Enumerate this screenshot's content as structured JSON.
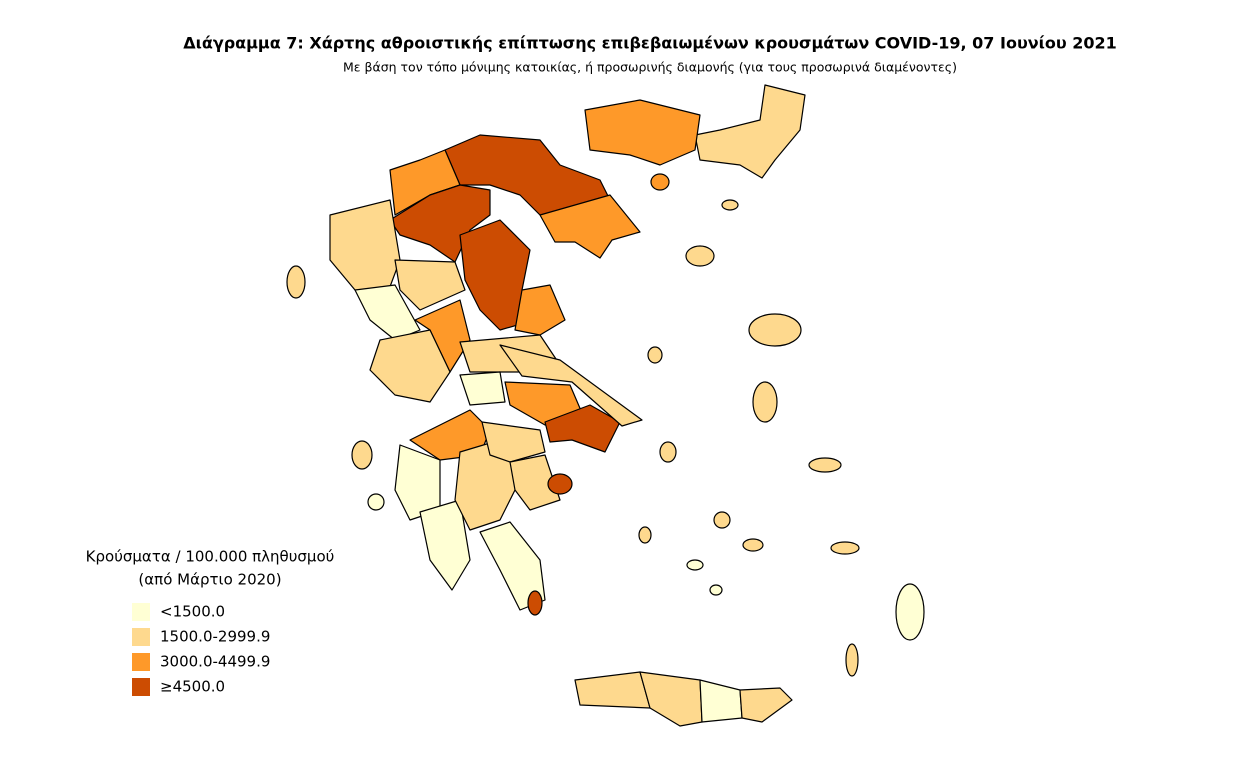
{
  "map": {
    "title": "Διάγραμμα 7: Χάρτης αθροιστικής επίπτωσης επιβεβαιωμένων κρουσμάτων COVID-19, 07 Ιουνίου 2021",
    "subtitle": "Με βάση τον τόπο μόνιμης κατοικίας, ή προσωρινής διαμονής (για τους προσωρινά διαμένοντες)",
    "legend": {
      "title": [
        "Κρούσματα / 100.000 πληθυσμού",
        "(από Μάρτιο 2020)"
      ],
      "items": [
        {
          "label": "<1500.0",
          "color": "#ffffd4"
        },
        {
          "label": "1500.0-2999.9",
          "color": "#fed98e"
        },
        {
          "label": "3000.0-4499.9",
          "color": "#fe9929"
        },
        {
          "label": "≥4500.0",
          "color": "#cc4c02"
        }
      ]
    }
  }
}
